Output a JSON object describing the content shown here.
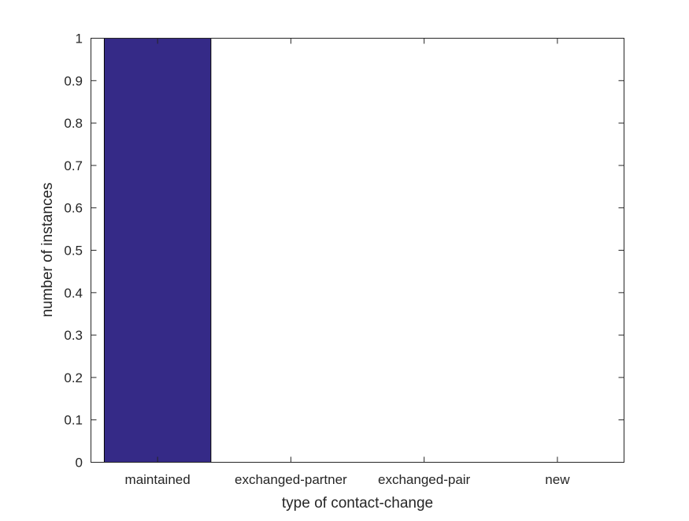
{
  "chart_data": {
    "type": "bar",
    "categories": [
      "maintained",
      "exchanged-partner",
      "exchanged-pair",
      "new"
    ],
    "values": [
      1,
      0,
      0,
      0
    ],
    "xlabel": "type of contact-change",
    "ylabel": "number of instances",
    "ylim": [
      0,
      1
    ],
    "yticks": [
      "0",
      "0.1",
      "0.2",
      "0.3",
      "0.4",
      "0.5",
      "0.6",
      "0.7",
      "0.8",
      "0.9",
      "1"
    ],
    "grid": false,
    "bar_color": "#352a87"
  }
}
